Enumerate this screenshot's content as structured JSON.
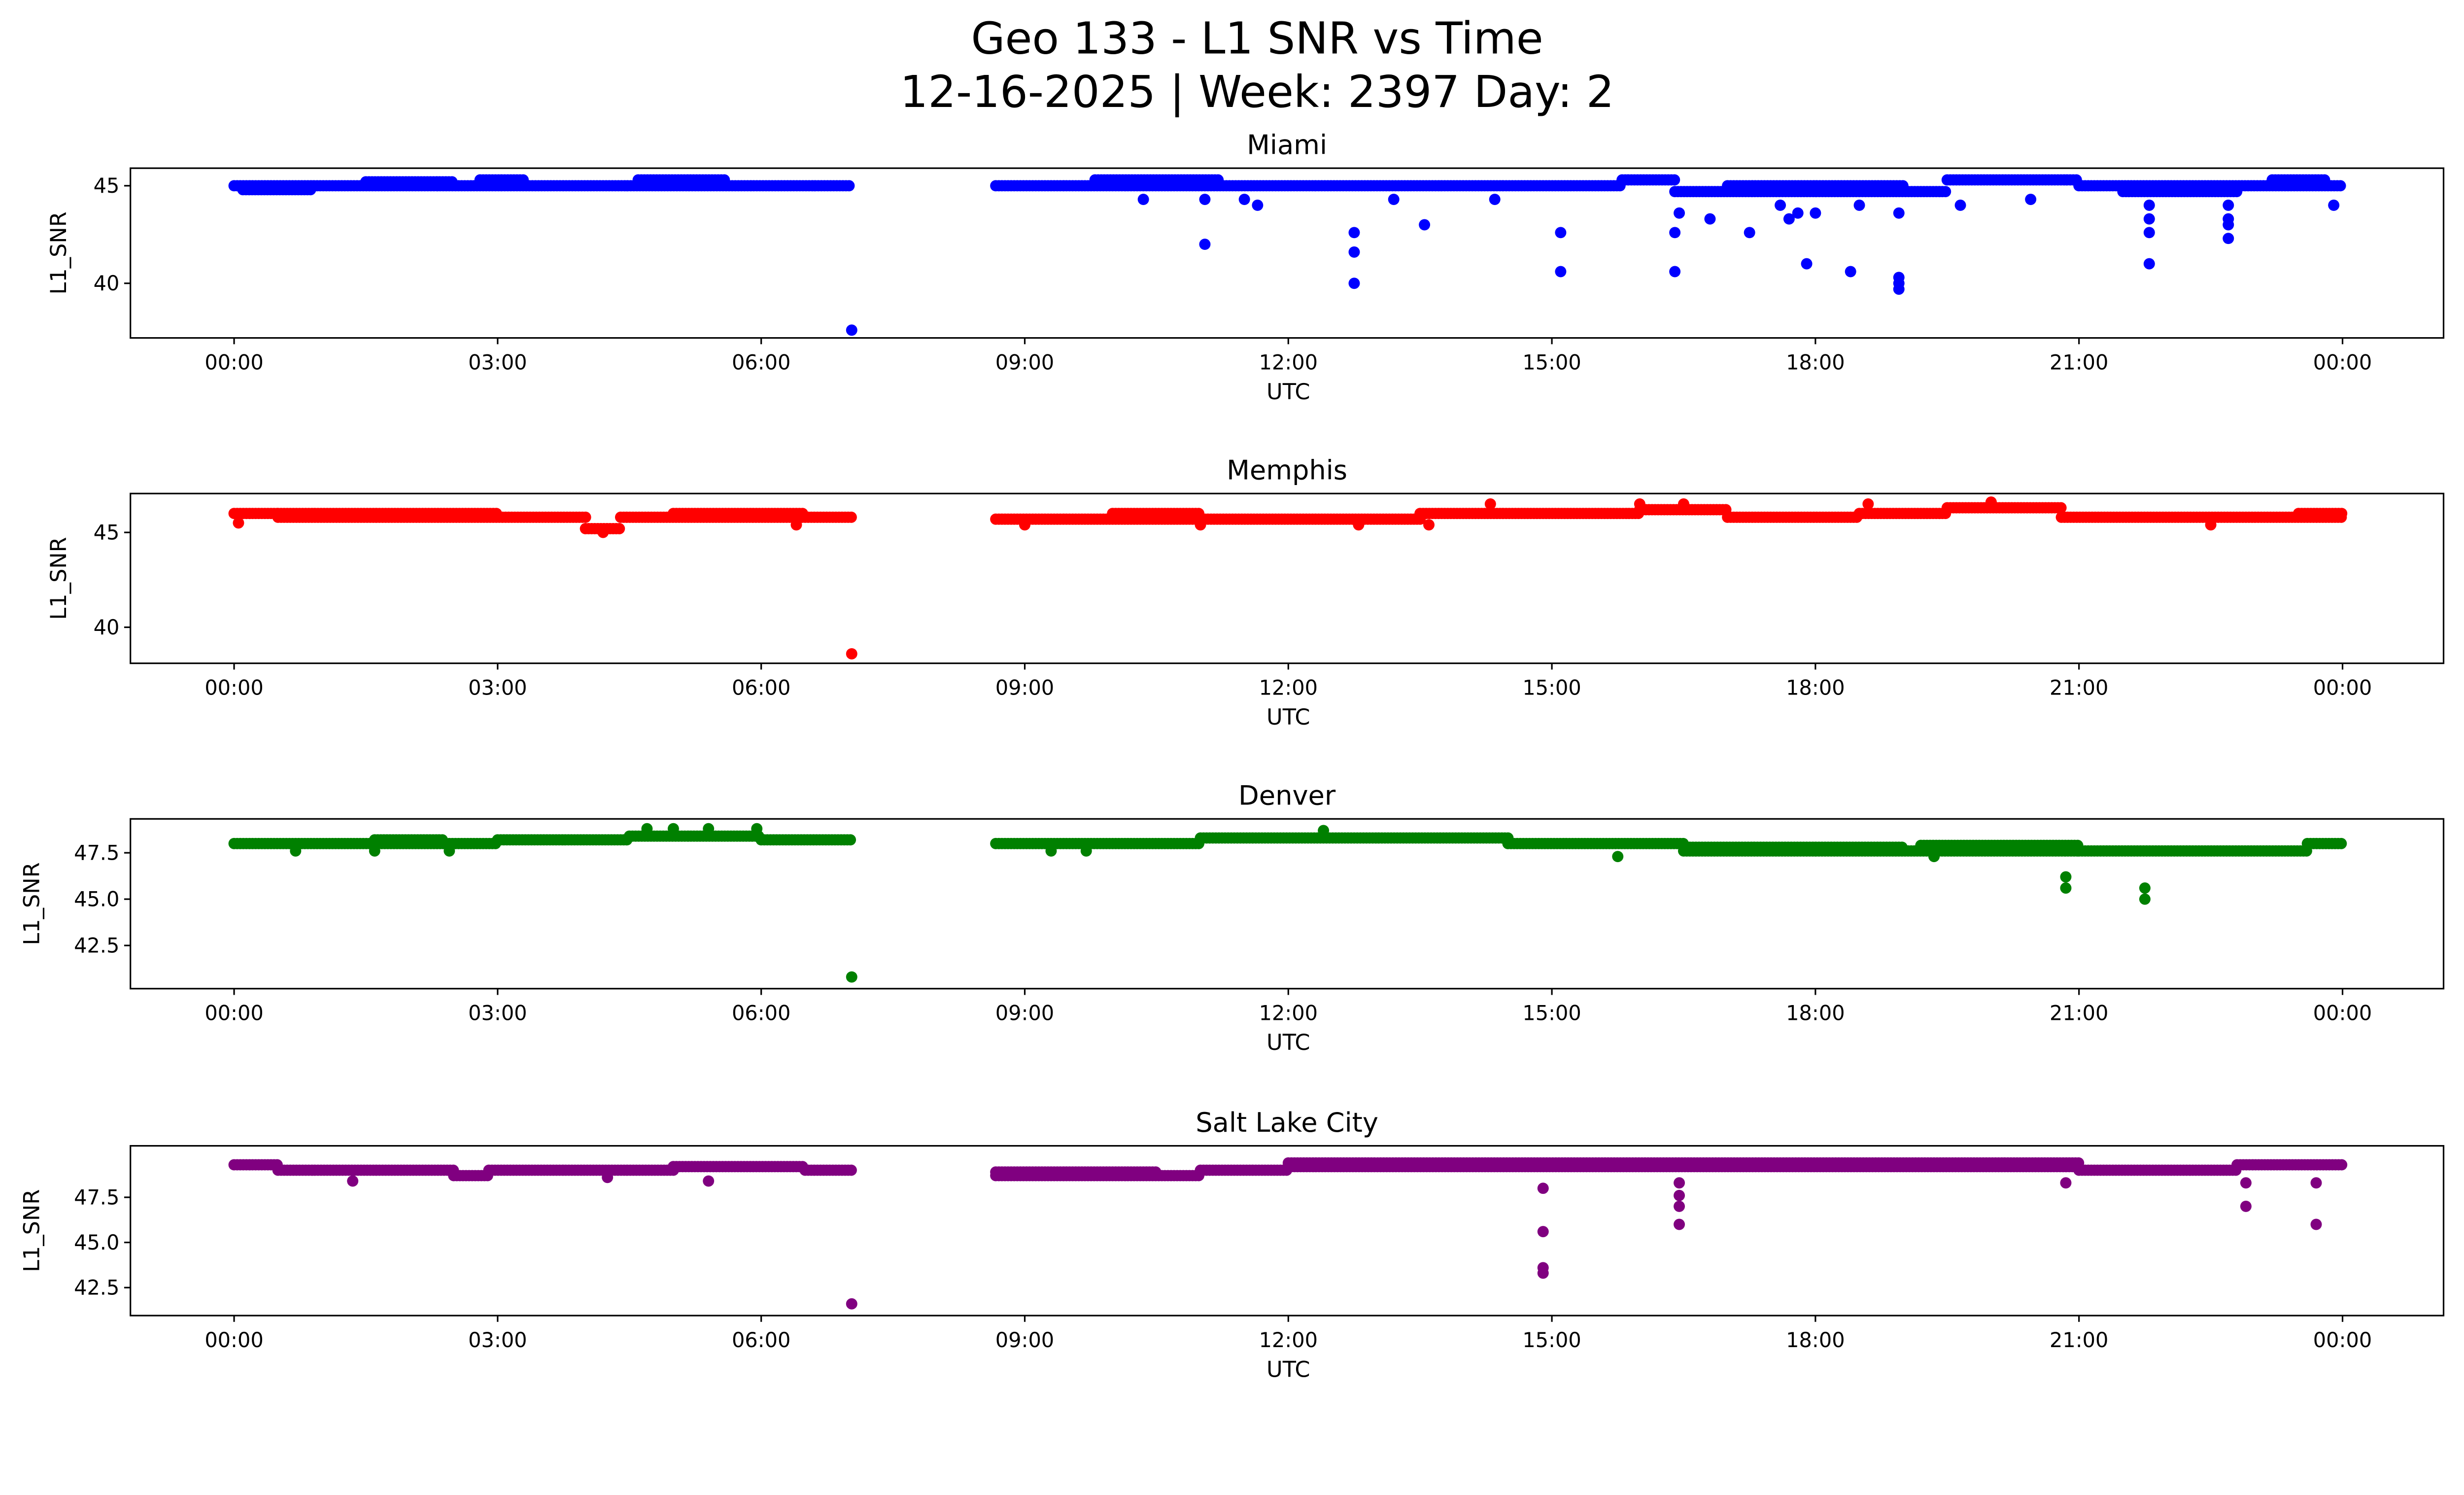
{
  "chart_data": {
    "type": "scatter",
    "title": "Geo 133 - L1 SNR vs Time",
    "subtitle": "12-16-2025 | Week: 2397 Day: 2",
    "xlabel": "UTC",
    "ylabel": "L1_SNR",
    "x_units": "hours since 00:00 UTC",
    "xlim": [
      -1.18,
      25.15
    ],
    "xticks": [
      0,
      3,
      6,
      9,
      12,
      15,
      18,
      21,
      24
    ],
    "xtick_labels": [
      "00:00",
      "03:00",
      "06:00",
      "09:00",
      "12:00",
      "15:00",
      "18:00",
      "21:00",
      "00:00"
    ],
    "grid": false,
    "panels": [
      {
        "name": "Miami",
        "color": "#0000ff",
        "ylim": [
          37.2,
          45.9
        ],
        "yticks": [
          40,
          45
        ],
        "ytick_labels": [
          "40",
          "45"
        ],
        "segments": [
          [
            0,
            7.03,
            45.0
          ],
          [
            0.1,
            0.9,
            44.8
          ],
          [
            1.5,
            2.5,
            45.2
          ],
          [
            2.8,
            3.3,
            45.3
          ],
          [
            4.6,
            5.6,
            45.3
          ],
          [
            8.67,
            15.8,
            45.0
          ],
          [
            9.8,
            11.2,
            45.3
          ],
          [
            15.8,
            16.4,
            45.3
          ],
          [
            16.4,
            19.5,
            44.7
          ],
          [
            17.0,
            19.0,
            45.0
          ],
          [
            19.5,
            21.0,
            45.3
          ],
          [
            21.0,
            24.0,
            45.0
          ],
          [
            21.5,
            22.8,
            44.7
          ],
          [
            23.2,
            23.8,
            45.3
          ]
        ],
        "outliers": [
          [
            7.03,
            37.6
          ],
          [
            11.05,
            42.0
          ],
          [
            11.05,
            44.3
          ],
          [
            10.35,
            44.3
          ],
          [
            11.5,
            44.3
          ],
          [
            11.65,
            44.0
          ],
          [
            12.75,
            42.6
          ],
          [
            12.75,
            41.6
          ],
          [
            12.75,
            40.0
          ],
          [
            13.2,
            44.3
          ],
          [
            13.55,
            43.0
          ],
          [
            14.35,
            44.3
          ],
          [
            15.1,
            42.6
          ],
          [
            15.1,
            40.6
          ],
          [
            16.4,
            42.6
          ],
          [
            16.4,
            40.6
          ],
          [
            16.45,
            43.6
          ],
          [
            16.8,
            43.3
          ],
          [
            17.25,
            42.6
          ],
          [
            17.6,
            44.0
          ],
          [
            17.7,
            43.3
          ],
          [
            17.8,
            43.6
          ],
          [
            17.9,
            41.0
          ],
          [
            18.0,
            43.6
          ],
          [
            18.4,
            40.6
          ],
          [
            18.5,
            44.0
          ],
          [
            18.95,
            40.3
          ],
          [
            18.95,
            40.0
          ],
          [
            18.95,
            39.7
          ],
          [
            18.95,
            43.6
          ],
          [
            19.65,
            44.0
          ],
          [
            20.45,
            44.3
          ],
          [
            21.8,
            41.0
          ],
          [
            21.8,
            42.6
          ],
          [
            21.8,
            43.3
          ],
          [
            21.8,
            44.0
          ],
          [
            22.7,
            42.3
          ],
          [
            22.7,
            43.0
          ],
          [
            22.7,
            43.3
          ],
          [
            22.7,
            44.0
          ],
          [
            23.9,
            44.0
          ]
        ]
      },
      {
        "name": "Memphis",
        "color": "#ff0000",
        "ylim": [
          38.1,
          47.05
        ],
        "yticks": [
          40,
          45
        ],
        "ytick_labels": [
          "40",
          "45"
        ],
        "segments": [
          [
            0,
            0.5,
            46.0
          ],
          [
            0.5,
            4.0,
            45.8
          ],
          [
            0.5,
            3.0,
            46.0
          ],
          [
            4.0,
            4.4,
            45.2
          ],
          [
            4.4,
            7.03,
            45.8
          ],
          [
            5.0,
            6.5,
            46.0
          ],
          [
            8.67,
            13.5,
            45.7
          ],
          [
            10.0,
            11.0,
            46.0
          ],
          [
            13.5,
            16.0,
            46.0
          ],
          [
            16.0,
            17.0,
            46.2
          ],
          [
            17.0,
            18.5,
            45.8
          ],
          [
            18.5,
            19.5,
            46.0
          ],
          [
            19.5,
            20.8,
            46.3
          ],
          [
            20.8,
            24.0,
            45.8
          ],
          [
            23.5,
            24.0,
            46.0
          ]
        ],
        "outliers": [
          [
            7.03,
            38.6
          ],
          [
            0.05,
            45.5
          ],
          [
            4.2,
            45.0
          ],
          [
            6.4,
            45.4
          ],
          [
            9.0,
            45.4
          ],
          [
            11.0,
            45.4
          ],
          [
            12.8,
            45.4
          ],
          [
            13.6,
            45.4
          ],
          [
            14.3,
            46.5
          ],
          [
            16.0,
            46.5
          ],
          [
            16.5,
            46.5
          ],
          [
            18.6,
            46.5
          ],
          [
            20.0,
            46.6
          ],
          [
            22.5,
            45.4
          ]
        ]
      },
      {
        "name": "Denver",
        "color": "#008000",
        "ylim": [
          40.17,
          49.33
        ],
        "yticks": [
          42.5,
          45.0,
          47.5
        ],
        "ytick_labels": [
          "42.5",
          "45.0",
          "47.5"
        ],
        "segments": [
          [
            0,
            3.0,
            48.0
          ],
          [
            1.6,
            2.4,
            48.2
          ],
          [
            3.0,
            4.5,
            48.2
          ],
          [
            4.5,
            6.0,
            48.4
          ],
          [
            6.0,
            7.03,
            48.2
          ],
          [
            8.67,
            11.0,
            48.0
          ],
          [
            11.0,
            14.5,
            48.3
          ],
          [
            14.5,
            16.5,
            48.0
          ],
          [
            16.5,
            21.0,
            47.6
          ],
          [
            16.5,
            19.0,
            47.8
          ],
          [
            19.2,
            21.0,
            47.9
          ],
          [
            21.0,
            23.6,
            47.6
          ],
          [
            23.6,
            24.0,
            48.0
          ]
        ],
        "outliers": [
          [
            7.03,
            40.8
          ],
          [
            0.7,
            47.6
          ],
          [
            1.6,
            47.6
          ],
          [
            2.45,
            47.6
          ],
          [
            4.7,
            48.8
          ],
          [
            5.0,
            48.8
          ],
          [
            5.4,
            48.8
          ],
          [
            5.95,
            48.8
          ],
          [
            9.3,
            47.6
          ],
          [
            9.7,
            47.6
          ],
          [
            12.4,
            48.7
          ],
          [
            15.75,
            47.3
          ],
          [
            19.35,
            47.3
          ],
          [
            20.85,
            46.2
          ],
          [
            20.85,
            45.6
          ],
          [
            21.75,
            45.6
          ],
          [
            21.75,
            45.0
          ]
        ]
      },
      {
        "name": "Salt Lake City",
        "color": "#800080",
        "ylim": [
          40.95,
          50.35
        ],
        "yticks": [
          42.5,
          45.0,
          47.5
        ],
        "ytick_labels": [
          "42.5",
          "45.0",
          "47.5"
        ],
        "segments": [
          [
            0,
            0.5,
            49.3
          ],
          [
            0.5,
            2.5,
            49.0
          ],
          [
            2.5,
            2.9,
            48.7
          ],
          [
            2.9,
            5.0,
            49.0
          ],
          [
            5.0,
            6.5,
            49.2
          ],
          [
            6.5,
            7.03,
            49.0
          ],
          [
            8.67,
            11.0,
            48.7
          ],
          [
            8.67,
            10.5,
            48.9
          ],
          [
            11.0,
            12.0,
            49.0
          ],
          [
            12.0,
            21.0,
            49.4
          ],
          [
            12.0,
            21.0,
            49.2
          ],
          [
            21.0,
            22.8,
            49.0
          ],
          [
            22.8,
            24.0,
            49.3
          ]
        ],
        "outliers": [
          [
            7.03,
            41.6
          ],
          [
            1.35,
            48.4
          ],
          [
            4.25,
            48.6
          ],
          [
            5.4,
            48.4
          ],
          [
            14.9,
            48.0
          ],
          [
            14.9,
            45.6
          ],
          [
            14.9,
            43.6
          ],
          [
            14.9,
            43.3
          ],
          [
            16.45,
            48.3
          ],
          [
            16.45,
            47.6
          ],
          [
            16.45,
            47.0
          ],
          [
            16.45,
            46.0
          ],
          [
            20.85,
            48.3
          ],
          [
            22.9,
            48.3
          ],
          [
            22.9,
            47.0
          ],
          [
            23.7,
            48.3
          ],
          [
            23.7,
            46.0
          ]
        ]
      }
    ]
  }
}
